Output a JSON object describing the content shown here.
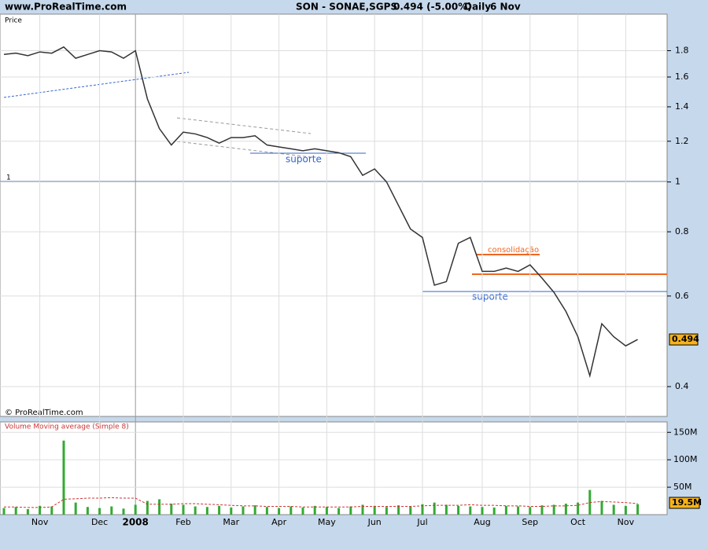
{
  "header": {
    "site": "www.ProRealTime.com",
    "instrument": "SON - SONAE,SGPS",
    "quote": "0.494 (-5.00%)",
    "period": "Daily",
    "date": "6 Nov"
  },
  "chart_data": [
    {
      "type": "line",
      "panel_label": "Price",
      "copyright": "© ProRealTime.com",
      "log_scale": true,
      "grid": true,
      "categories": [
        null,
        null,
        null,
        "Nov",
        null,
        null,
        null,
        null,
        "Dec",
        null,
        null,
        "2008",
        null,
        null,
        null,
        "Feb",
        null,
        null,
        null,
        "Mar",
        null,
        null,
        null,
        "Apr",
        null,
        null,
        null,
        "May",
        null,
        null,
        null,
        "Jun",
        null,
        null,
        null,
        "Jul",
        null,
        null,
        null,
        null,
        "Aug",
        null,
        null,
        null,
        "Sep",
        null,
        null,
        null,
        "Oct",
        null,
        null,
        null,
        "Nov",
        null
      ],
      "series": [
        {
          "name": "Price",
          "color": "#333333",
          "values": [
            1.77,
            1.78,
            1.76,
            1.79,
            1.78,
            1.83,
            1.74,
            1.77,
            1.8,
            1.79,
            1.74,
            1.8,
            1.45,
            1.27,
            1.18,
            1.25,
            1.24,
            1.22,
            1.19,
            1.22,
            1.22,
            1.23,
            1.18,
            1.17,
            1.16,
            1.15,
            1.16,
            1.15,
            1.14,
            1.12,
            1.03,
            1.06,
            1.0,
            0.9,
            0.81,
            0.78,
            0.63,
            0.64,
            0.76,
            0.78,
            0.67,
            0.67,
            0.68,
            0.67,
            0.69,
            0.65,
            0.61,
            0.56,
            0.5,
            0.42,
            0.53,
            0.5,
            0.48,
            0.494
          ]
        }
      ],
      "last_value_label": "0.494",
      "ylim": [
        0.35,
        2.12
      ],
      "yticks": [
        0.4,
        0.6,
        0.8,
        1,
        1.2,
        1.4,
        1.6,
        1.8
      ],
      "annotations": [
        "1",
        "suporte",
        "consolidação",
        "suporte"
      ]
    },
    {
      "type": "bar",
      "panel_label": "Volume Moving average (Simple 8)",
      "series": [
        {
          "name": "Volume",
          "color": "#33aa33",
          "values": [
            12,
            14,
            10,
            16,
            15,
            135,
            22,
            14,
            12,
            15,
            11,
            18,
            25,
            28,
            20,
            18,
            15,
            14,
            16,
            13,
            15,
            17,
            14,
            12,
            15,
            13,
            16,
            14,
            12,
            15,
            18,
            16,
            14,
            17,
            15,
            19,
            22,
            18,
            16,
            15,
            14,
            13,
            16,
            15,
            14,
            17,
            18,
            20,
            22,
            45,
            25,
            18,
            16,
            19
          ]
        },
        {
          "name": "Moving average",
          "color": "#cc3333",
          "values": [
            14,
            14,
            13,
            13,
            14,
            28,
            29,
            30,
            30,
            31,
            30,
            30,
            19,
            19,
            19,
            20,
            20,
            19,
            18,
            17,
            16,
            16,
            15,
            15,
            15,
            14,
            14,
            14,
            14,
            14,
            15,
            15,
            15,
            15,
            15,
            16,
            17,
            17,
            17,
            18,
            17,
            17,
            16,
            16,
            15,
            15,
            16,
            16,
            17,
            22,
            24,
            23,
            22,
            20
          ]
        }
      ],
      "last_value_label": "19.5M",
      "ylim": [
        0,
        169
      ],
      "yticks": [
        {
          "value": 50,
          "label": "50M"
        },
        {
          "value": 100,
          "label": "100M"
        },
        {
          "value": 150,
          "label": "150M"
        }
      ]
    }
  ]
}
